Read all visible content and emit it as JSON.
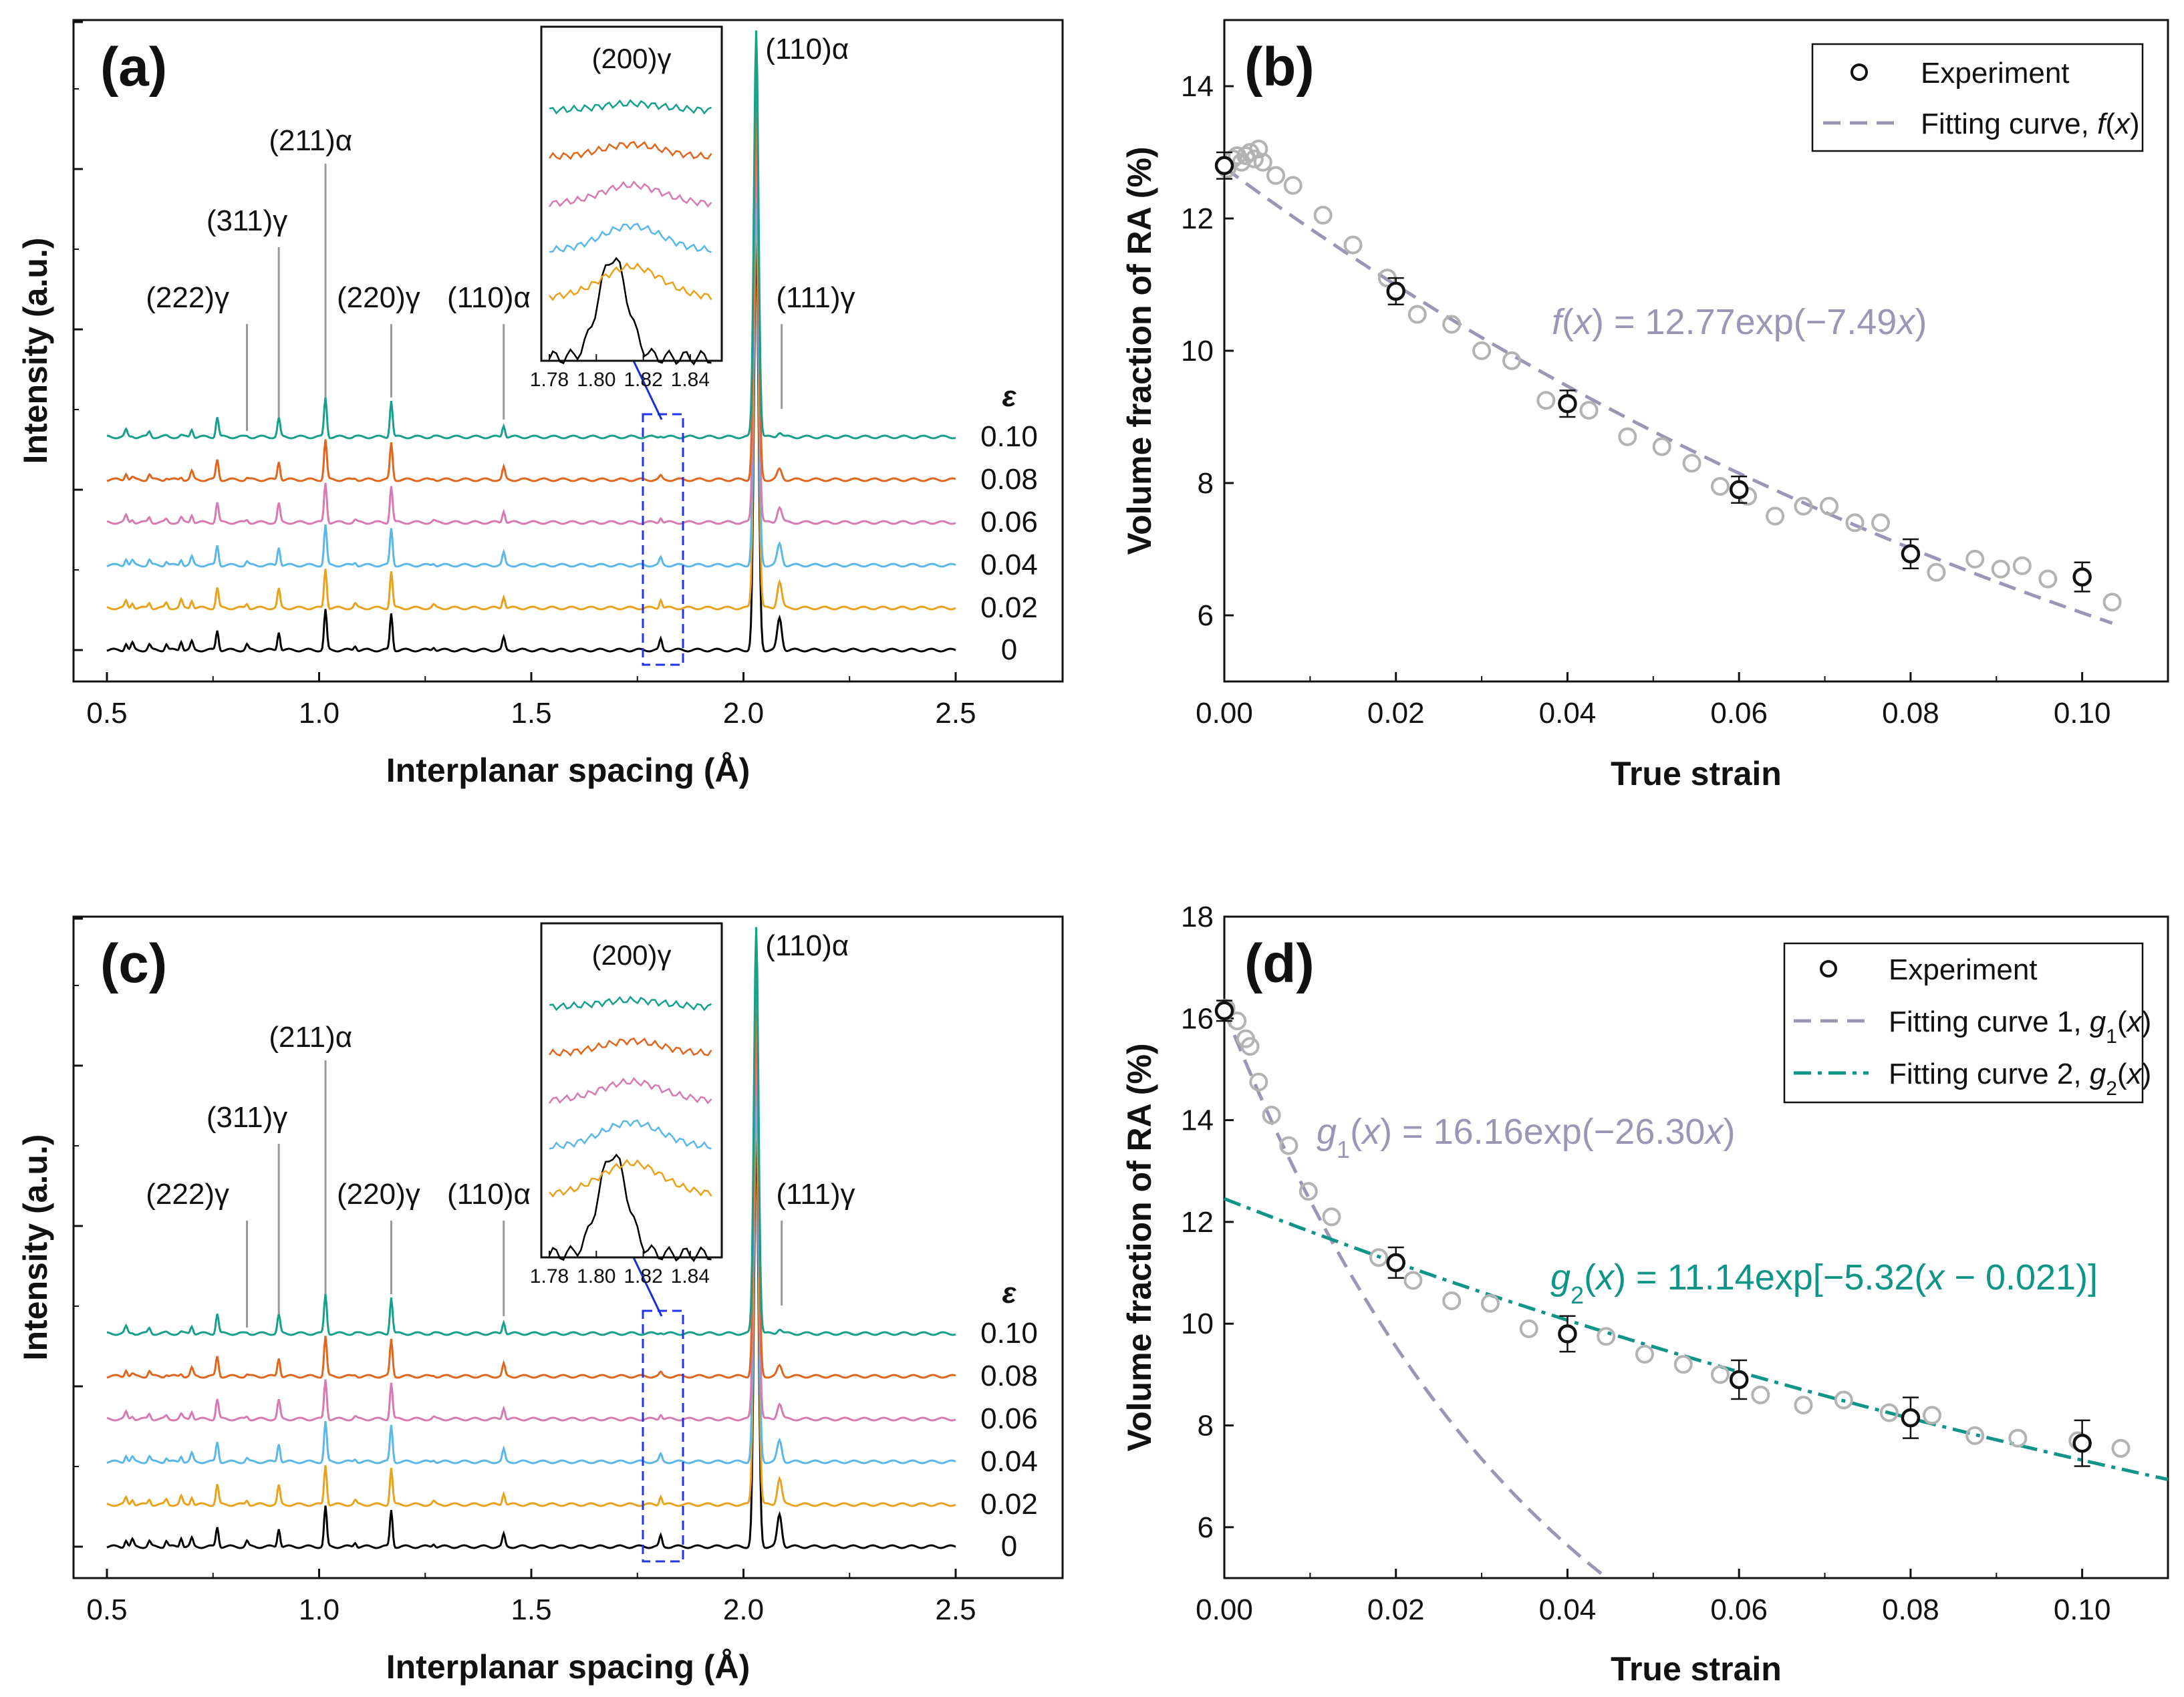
{
  "colors": {
    "strain_0": "#000000",
    "strain_002": "#e8a21c",
    "strain_004": "#5ab7e8",
    "strain_006": "#d77ab0",
    "strain_008": "#e0661e",
    "strain_010": "#17a089",
    "fit_gray": "#9a97b6",
    "fit_teal": "#0f9488",
    "exp_light": "#b3b3b3",
    "inset_box": "#2233ee",
    "arrow": "#1a2cd8"
  },
  "chart_data": [
    {
      "id": "a",
      "panel_label": "(a)",
      "type": "line",
      "xlabel": "Interplanar spacing (Å)",
      "ylabel": "Intensity (a.u.)",
      "xlim": [
        0.5,
        2.5
      ],
      "x_ticks": [
        "0.5",
        "1.0",
        "1.5",
        "2.0",
        "2.5"
      ],
      "x_tick_values": [
        0.5,
        1.0,
        1.5,
        2.0,
        2.5
      ],
      "strain_header": "ε",
      "series": [
        {
          "name": "0",
          "color": "#000000"
        },
        {
          "name": "0.02",
          "color": "#e8a21c"
        },
        {
          "name": "0.04",
          "color": "#5ab7e8"
        },
        {
          "name": "0.06",
          "color": "#d77ab0"
        },
        {
          "name": "0.08",
          "color": "#e0661e"
        },
        {
          "name": "0.10",
          "color": "#17a089"
        }
      ],
      "peaks": [
        {
          "label": "(222)γ",
          "d": 0.83
        },
        {
          "label": "(311)γ",
          "d": 0.905
        },
        {
          "label": "(211)α",
          "d": 1.015
        },
        {
          "label": "(220)γ",
          "d": 1.17
        },
        {
          "label": "(110)α",
          "d": 1.435
        },
        {
          "label": "(110)α",
          "d": 2.03
        },
        {
          "label": "(111)γ",
          "d": 2.09
        }
      ],
      "inset": {
        "title": "(200)γ",
        "xlim": [
          1.78,
          1.85
        ],
        "x_ticks": [
          "1.78",
          "1.80",
          "1.82",
          "1.84"
        ],
        "x_tick_values": [
          1.78,
          1.8,
          1.82,
          1.84
        ]
      }
    },
    {
      "id": "b",
      "panel_label": "(b)",
      "type": "scatter",
      "xlabel": "True strain",
      "ylabel": "Volume fraction of RA (%)",
      "xlim": [
        0,
        0.11
      ],
      "ylim": [
        5,
        15
      ],
      "x_ticks": [
        "0.00",
        "0.02",
        "0.04",
        "0.06",
        "0.08",
        "0.10"
      ],
      "x_tick_values": [
        0,
        0.02,
        0.04,
        0.06,
        0.08,
        0.1
      ],
      "y_ticks": [
        "6",
        "8",
        "10",
        "12",
        "14"
      ],
      "y_tick_values": [
        6,
        8,
        10,
        12,
        14
      ],
      "legend": {
        "experiment": "Experiment",
        "fit": "Fitting curve, ",
        "fit_func": "f",
        "fit_arg": "(",
        "fit_x": "x",
        "fit_close": ")"
      },
      "formula": {
        "f": "f",
        "lp": "(",
        "x": "x",
        "rest": ") = 12.77exp(−7.49",
        "x2": "x",
        "end": ")"
      },
      "experiment_points": [
        {
          "x": 0.0,
          "y": 12.8,
          "err": 0.2
        },
        {
          "x": 0.02,
          "y": 10.9,
          "err": 0.2
        },
        {
          "x": 0.04,
          "y": 9.2,
          "err": 0.2
        },
        {
          "x": 0.06,
          "y": 7.9,
          "err": 0.2
        },
        {
          "x": 0.08,
          "y": 6.93,
          "err": 0.22
        },
        {
          "x": 0.1,
          "y": 6.58,
          "err": 0.22
        }
      ],
      "dense_points": {
        "x": [
          0.0003,
          0.001,
          0.0015,
          0.002,
          0.0025,
          0.003,
          0.0035,
          0.004,
          0.0045,
          0.006,
          0.008,
          0.0115,
          0.015,
          0.019,
          0.0225,
          0.0265,
          0.03,
          0.0335,
          0.0375,
          0.0425,
          0.047,
          0.051,
          0.0545,
          0.0578,
          0.061,
          0.0642,
          0.0675,
          0.0705,
          0.0735,
          0.0765,
          0.083,
          0.0875,
          0.0905,
          0.093,
          0.096,
          0.1035
        ],
        "y": [
          12.75,
          12.9,
          12.95,
          12.85,
          12.95,
          13.0,
          12.9,
          13.05,
          12.85,
          12.65,
          12.5,
          12.05,
          11.6,
          11.1,
          10.55,
          10.4,
          10.0,
          9.85,
          9.25,
          9.1,
          8.7,
          8.55,
          8.3,
          7.95,
          7.8,
          7.5,
          7.65,
          7.65,
          7.4,
          7.4,
          6.65,
          6.85,
          6.7,
          6.75,
          6.55,
          6.2
        ]
      },
      "fits": [
        {
          "name": "f(x)",
          "a": 12.77,
          "b": -7.49,
          "x0": 0,
          "x_range": [
            0,
            0.1035
          ],
          "style": "dash",
          "color": "#9a97b6"
        }
      ]
    },
    {
      "id": "c",
      "panel_label": "(c)",
      "type": "line",
      "xlabel": "Interplanar spacing (Å)",
      "ylabel": "Intensity (a.u.)",
      "xlim": [
        0.5,
        2.5
      ],
      "x_ticks": [
        "0.5",
        "1.0",
        "1.5",
        "2.0",
        "2.5"
      ],
      "x_tick_values": [
        0.5,
        1.0,
        1.5,
        2.0,
        2.5
      ],
      "strain_header": "ε",
      "series": [
        {
          "name": "0",
          "color": "#000000"
        },
        {
          "name": "0.02",
          "color": "#e8a21c"
        },
        {
          "name": "0.04",
          "color": "#5ab7e8"
        },
        {
          "name": "0.06",
          "color": "#d77ab0"
        },
        {
          "name": "0.08",
          "color": "#e0661e"
        },
        {
          "name": "0.10",
          "color": "#17a089"
        }
      ],
      "peaks": [
        {
          "label": "(222)γ",
          "d": 0.83
        },
        {
          "label": "(311)γ",
          "d": 0.905
        },
        {
          "label": "(211)α",
          "d": 1.015
        },
        {
          "label": "(220)γ",
          "d": 1.17
        },
        {
          "label": "(110)α",
          "d": 1.435
        },
        {
          "label": "(110)α",
          "d": 2.03
        },
        {
          "label": "(111)γ",
          "d": 2.09
        }
      ],
      "inset": {
        "title": "(200)γ",
        "xlim": [
          1.78,
          1.85
        ],
        "x_ticks": [
          "1.78",
          "1.80",
          "1.82",
          "1.84"
        ],
        "x_tick_values": [
          1.78,
          1.8,
          1.82,
          1.84
        ]
      }
    },
    {
      "id": "d",
      "panel_label": "(d)",
      "type": "scatter",
      "xlabel": "True strain",
      "ylabel": "Volume fraction of RA (%)",
      "xlim": [
        0,
        0.11
      ],
      "ylim": [
        5,
        18
      ],
      "x_ticks": [
        "0.00",
        "0.02",
        "0.04",
        "0.06",
        "0.08",
        "0.10"
      ],
      "x_tick_values": [
        0,
        0.02,
        0.04,
        0.06,
        0.08,
        0.1
      ],
      "y_ticks": [
        "6",
        "8",
        "10",
        "12",
        "14",
        "16",
        "18"
      ],
      "y_tick_values": [
        6,
        8,
        10,
        12,
        14,
        16,
        18
      ],
      "legend": {
        "experiment": "Experiment",
        "fit1": "Fitting curve 1, ",
        "fit1_func": "g",
        "fit1_sub": "1",
        "fit1_arg": "(",
        "fit1_x": "x",
        "fit1_close": ")",
        "fit2": "Fitting curve 2, ",
        "fit2_func": "g",
        "fit2_sub": "2",
        "fit2_arg": "(",
        "fit2_x": "x",
        "fit2_close": ")"
      },
      "formula1": {
        "g": "g",
        "sub": "1",
        "lp": "(",
        "x": "x",
        "rest": ") = 16.16exp(−26.30",
        "x2": "x",
        "end": ")"
      },
      "formula2": {
        "g": "g",
        "sub": "2",
        "lp": "(",
        "x": "x",
        "rest": ") = 11.14exp[−5.32(",
        "x2": "x",
        "end": " − 0.021)]"
      },
      "experiment_points": [
        {
          "x": 0.0,
          "y": 16.15,
          "err": 0.2
        },
        {
          "x": 0.02,
          "y": 11.2,
          "err": 0.3
        },
        {
          "x": 0.04,
          "y": 9.8,
          "err": 0.35
        },
        {
          "x": 0.06,
          "y": 8.9,
          "err": 0.38
        },
        {
          "x": 0.08,
          "y": 8.15,
          "err": 0.4
        },
        {
          "x": 0.1,
          "y": 7.65,
          "err": 0.45
        }
      ],
      "dense_points": {
        "x": [
          0.0002,
          0.0015,
          0.0025,
          0.003,
          0.004,
          0.0055,
          0.0075,
          0.0098,
          0.0125,
          0.018,
          0.022,
          0.0265,
          0.031,
          0.0355,
          0.0445,
          0.049,
          0.0535,
          0.0578,
          0.0625,
          0.0675,
          0.0722,
          0.0775,
          0.0825,
          0.0875,
          0.0925,
          0.0995,
          0.1045
        ],
        "y": [
          16.2,
          15.95,
          15.6,
          15.45,
          14.75,
          14.1,
          13.5,
          12.6,
          12.1,
          11.3,
          10.85,
          10.45,
          10.4,
          9.9,
          9.75,
          9.4,
          9.2,
          9.0,
          8.6,
          8.4,
          8.5,
          8.25,
          8.2,
          7.8,
          7.75,
          7.7,
          7.55
        ]
      },
      "fits": [
        {
          "name": "g1(x)",
          "a": 16.16,
          "b": -26.3,
          "x0": 0,
          "x_range": [
            0,
            0.0443
          ],
          "style": "dash",
          "color": "#9a97b6"
        },
        {
          "name": "g2(x)",
          "a": 11.14,
          "b": -5.32,
          "x0": 0.021,
          "x_range": [
            0,
            0.11
          ],
          "style": "dashdot",
          "color": "#0f9488"
        }
      ]
    }
  ]
}
